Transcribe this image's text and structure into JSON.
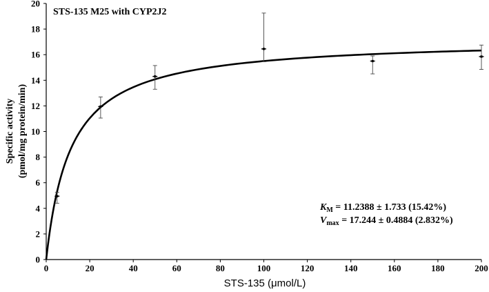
{
  "chart_data": {
    "type": "scatter",
    "title": "STS-135 M25 with CYP2J2",
    "xlabel": "STS-135 (μmol/L)",
    "ylabel_line1": "Specific activity",
    "ylabel_line2": "(pmol/mg protein/min)",
    "xlim": [
      0,
      200
    ],
    "ylim": [
      0,
      20
    ],
    "x_ticks": [
      0,
      20,
      40,
      60,
      80,
      100,
      120,
      140,
      160,
      180,
      200
    ],
    "y_ticks": [
      0,
      2,
      4,
      6,
      8,
      10,
      12,
      14,
      16,
      18,
      20
    ],
    "grid": false,
    "points": [
      {
        "x": 5,
        "y": 4.95,
        "err_low": 0.55,
        "err_high": 0.3
      },
      {
        "x": 25,
        "y": 11.95,
        "err_low": 0.9,
        "err_high": 0.75
      },
      {
        "x": 50,
        "y": 14.3,
        "err_low": 1.0,
        "err_high": 0.85
      },
      {
        "x": 100,
        "y": 16.45,
        "err_low": 1.0,
        "err_high": 2.8
      },
      {
        "x": 150,
        "y": 15.5,
        "err_low": 1.0,
        "err_high": 0.4
      },
      {
        "x": 200,
        "y": 15.85,
        "err_low": 1.0,
        "err_high": 0.9
      }
    ],
    "fit": {
      "model": "michaelis-menten",
      "Km": 11.2388,
      "Vmax": 17.244
    },
    "annotation": {
      "km_symbol": "K",
      "km_sub": "M",
      "km_text": " = 11.2388 ± 1.733 (15.42%)",
      "vmax_symbol": "V",
      "vmax_sub": "max",
      "vmax_text": " = 17.244 ± 0.4884 (2.832%)"
    }
  }
}
